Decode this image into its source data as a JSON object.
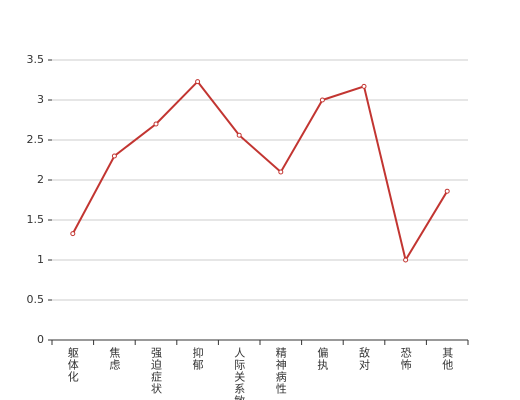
{
  "chart_data": {
    "type": "line",
    "categories": [
      "躯体化",
      "焦虑",
      "强迫症状",
      "抑郁",
      "人际关系敏感",
      "精神病性",
      "偏执",
      "敌对",
      "恐怖",
      "其他"
    ],
    "series": [
      {
        "color": "#c23531",
        "values": [
          1.33,
          2.3,
          2.7,
          3.23,
          2.56,
          2.1,
          3.0,
          3.17,
          1.0,
          1.86
        ]
      }
    ],
    "ylim": [
      0,
      3.5
    ],
    "yticks": [
      0,
      0.5,
      1,
      1.5,
      2,
      2.5,
      3,
      3.5
    ],
    "grid": true
  }
}
